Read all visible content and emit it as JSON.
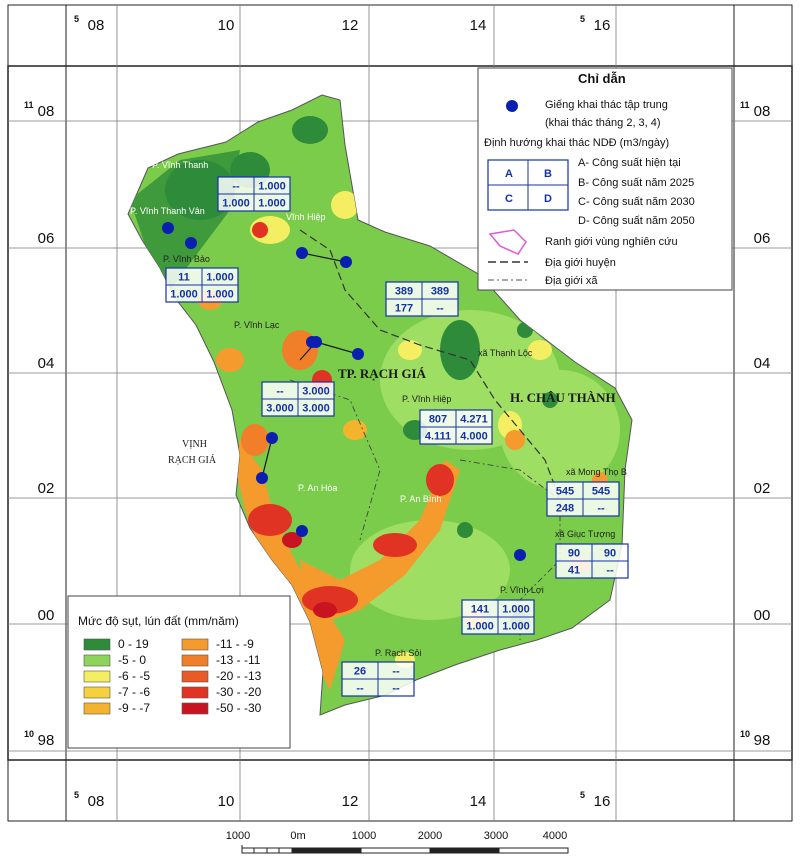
{
  "grid": {
    "top_labels": [
      {
        "sup": "5",
        "text": "08"
      },
      {
        "sup": "",
        "text": "10"
      },
      {
        "sup": "",
        "text": "12"
      },
      {
        "sup": "",
        "text": "14"
      },
      {
        "sup": "5",
        "text": "16"
      }
    ],
    "bottom_labels": [
      {
        "sup": "5",
        "text": "08"
      },
      {
        "sup": "",
        "text": "10"
      },
      {
        "sup": "",
        "text": "12"
      },
      {
        "sup": "",
        "text": "14"
      },
      {
        "sup": "5",
        "text": "16"
      }
    ],
    "left_labels": [
      {
        "sup": "11",
        "text": "08"
      },
      {
        "sup": "",
        "text": "06"
      },
      {
        "sup": "",
        "text": "04"
      },
      {
        "sup": "",
        "text": "02"
      },
      {
        "sup": "",
        "text": "00"
      },
      {
        "sup": "10",
        "text": "98"
      }
    ],
    "right_labels": [
      {
        "sup": "11",
        "text": "08"
      },
      {
        "sup": "",
        "text": "06"
      },
      {
        "sup": "",
        "text": "04"
      },
      {
        "sup": "",
        "text": "02"
      },
      {
        "sup": "",
        "text": "00"
      },
      {
        "sup": "10",
        "text": "98"
      }
    ]
  },
  "places": {
    "vinh_thanh": "P. Vĩnh Thanh",
    "vinh_thanh_van": "P. Vĩnh Thanh Vân",
    "vinh_hiep_p": "Vĩnh Hiệp",
    "vinh_bao": "P. Vĩnh Bảo",
    "vinh_lac": "P. Vĩnh Lạc",
    "thanh_loc": "xã Thạnh Lộc",
    "tp_rach_gia": "TP. RẠCH GIÁ",
    "h_chau_thanh": "H. CHÂU THÀNH",
    "vinh_hiep_x": "P. Vĩnh Hiệp",
    "vinh_rach_gia_1": "VỊNH",
    "vinh_rach_gia_2": "RẠCH GIÁ",
    "an_hoa": "P. An Hòa",
    "an_binh": "P. An Bình",
    "mong_tho": "xã Mong Thọ B",
    "giuc_tuong": "xã Giục Tượng",
    "vinh_loi": "P. Vĩnh Lợi",
    "rach_soi": "P. Rạch Sỏi"
  },
  "capacity_boxes": [
    {
      "id": "vinh-thanh",
      "a": "--",
      "b": "1.000",
      "c": "1.000",
      "d": "1.000"
    },
    {
      "id": "vinh-bao",
      "a": "11",
      "b": "1.000",
      "c": "1.000",
      "d": "1.000"
    },
    {
      "id": "vinh-hiep-north",
      "a": "389",
      "b": "389",
      "c": "177",
      "d": "--"
    },
    {
      "id": "tp-rach-gia",
      "a": "--",
      "b": "3.000",
      "c": "3.000",
      "d": "3.000"
    },
    {
      "id": "vinh-hiep",
      "a": "807",
      "b": "4.271",
      "c": "4.111",
      "d": "4.000"
    },
    {
      "id": "mong-tho",
      "a": "545",
      "b": "545",
      "c": "248",
      "d": "--"
    },
    {
      "id": "giuc-tuong",
      "a": "90",
      "b": "90",
      "c": "41",
      "d": "--"
    },
    {
      "id": "vinh-loi",
      "a": "141",
      "b": "1.000",
      "c": "1.000",
      "d": "1.000"
    },
    {
      "id": "rach-soi",
      "a": "26",
      "b": "--",
      "c": "--",
      "d": "--"
    }
  ],
  "wells": [
    {
      "id": "w1"
    },
    {
      "id": "w2"
    },
    {
      "id": "w3"
    },
    {
      "id": "w4"
    },
    {
      "id": "w5"
    },
    {
      "id": "w6"
    },
    {
      "id": "w7"
    },
    {
      "id": "w8"
    },
    {
      "id": "w9"
    },
    {
      "id": "w10"
    },
    {
      "id": "w11"
    }
  ],
  "guide_legend": {
    "title": "Chỉ dẫn",
    "well_line1": "Giếng khai thác tập trung",
    "well_line2": "(khai thác tháng 2, 3, 4)",
    "orientation_title": "Định hướng khai thác NDĐ (m3/ngày)",
    "cell_a": "A",
    "cell_b": "B",
    "cell_c": "C",
    "cell_d": "D",
    "item_a": "A- Công suất hiện tại",
    "item_b": "B- Công suất năm 2025",
    "item_c": "C- Công suất năm 2030",
    "item_d": "D- Công suất năm 2050",
    "study_boundary": "Ranh giới vùng nghiên cứu",
    "district_boundary": "Địa giới huyện",
    "commune_boundary": "Địa giới xã"
  },
  "subsidence_legend": {
    "title": "Mức độ sụt, lún đất (mm/năm)",
    "classes": [
      {
        "label": "0 - 19",
        "color": "#2e8b3a"
      },
      {
        "label": "-5 - 0",
        "color": "#8fd45a"
      },
      {
        "label": "-6 - -5",
        "color": "#f4ef62"
      },
      {
        "label": "-7 - -6",
        "color": "#f6d13e"
      },
      {
        "label": "-9 - -7",
        "color": "#f4b32c"
      },
      {
        "label": "-11 - -9",
        "color": "#f59a2c"
      },
      {
        "label": "-13 - -11",
        "color": "#f17f2a"
      },
      {
        "label": "-20 - -13",
        "color": "#ea5a26"
      },
      {
        "label": "-30 - -20",
        "color": "#e13324"
      },
      {
        "label": "-50 - -30",
        "color": "#c81420"
      }
    ]
  },
  "scale_bar": {
    "labels": [
      "1000",
      "0m",
      "1000",
      "2000",
      "3000",
      "4000"
    ]
  },
  "colors": {
    "base_green": "#7ccc4c",
    "light_green": "#9ede63",
    "dark_green": "#2e8b3a",
    "yellow": "#f4ef62",
    "orange": "#f59a2c",
    "red": "#e13324",
    "well_blue": "#0a1fb0",
    "box_blue": "#1432a8"
  }
}
